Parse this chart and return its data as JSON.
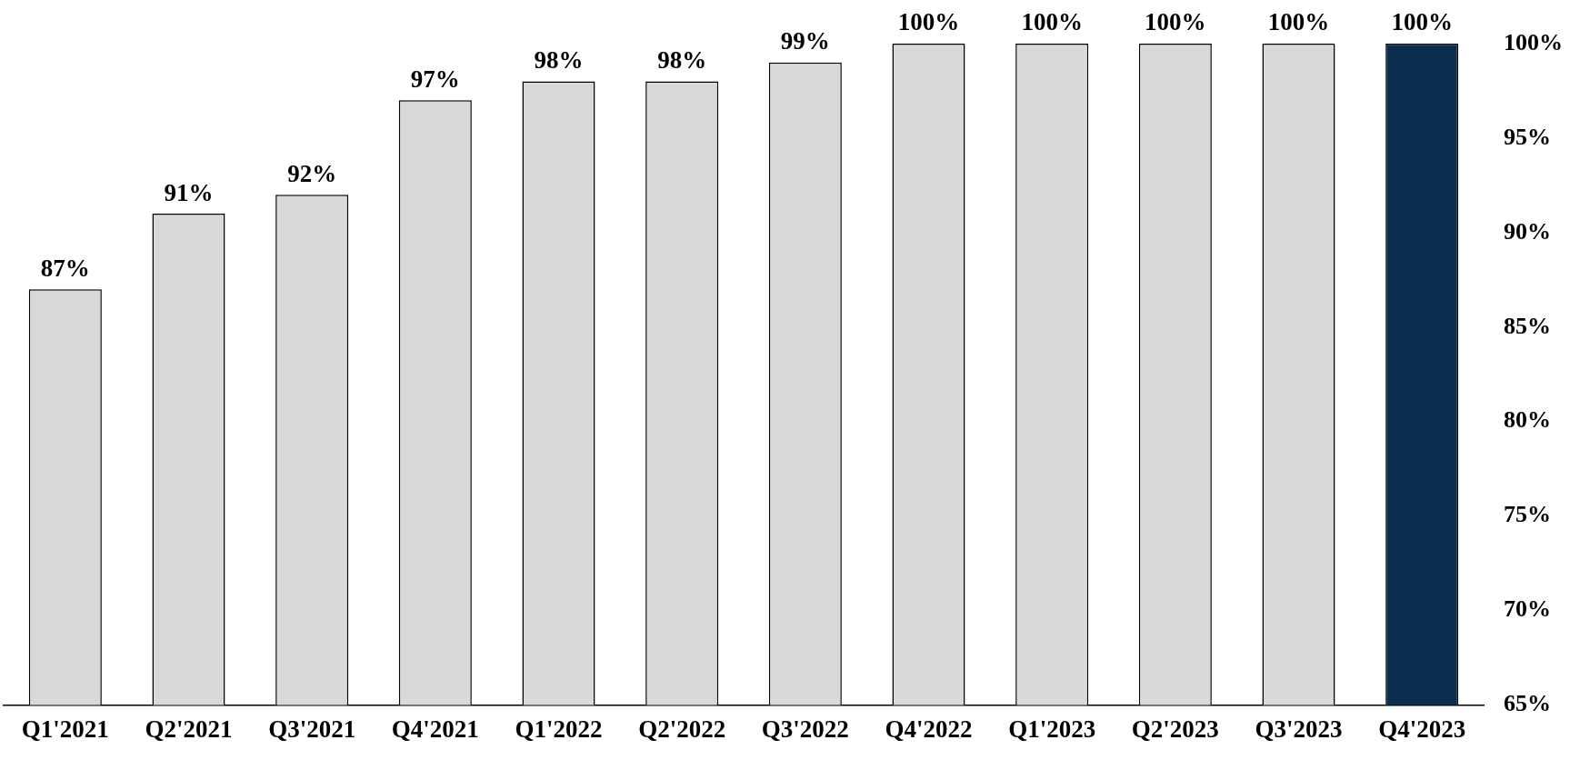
{
  "chart_data": {
    "type": "bar",
    "categories": [
      "Q1'2021",
      "Q2'2021",
      "Q3'2021",
      "Q4'2021",
      "Q1'2022",
      "Q2'2022",
      "Q3'2022",
      "Q4'2022",
      "Q1'2023",
      "Q2'2023",
      "Q3'2023",
      "Q4'2023"
    ],
    "values": [
      87,
      91,
      92,
      97,
      98,
      98,
      99,
      100,
      100,
      100,
      100,
      100
    ],
    "value_labels": [
      "87%",
      "91%",
      "92%",
      "97%",
      "98%",
      "98%",
      "99%",
      "100%",
      "100%",
      "100%",
      "100%",
      "100%"
    ],
    "colors": [
      "#d9d9d9",
      "#d9d9d9",
      "#d9d9d9",
      "#d9d9d9",
      "#d9d9d9",
      "#d9d9d9",
      "#d9d9d9",
      "#d9d9d9",
      "#d9d9d9",
      "#d9d9d9",
      "#d9d9d9",
      "#0b2e4f"
    ],
    "ylim": [
      65,
      100
    ],
    "yticks": [
      {
        "value": 65,
        "label": "65%"
      },
      {
        "value": 70,
        "label": "70%"
      },
      {
        "value": 75,
        "label": "75%"
      },
      {
        "value": 80,
        "label": "80%"
      },
      {
        "value": 85,
        "label": "85%"
      },
      {
        "value": 90,
        "label": "90%"
      },
      {
        "value": 95,
        "label": "95%"
      },
      {
        "value": 100,
        "label": "100%"
      }
    ],
    "grid": false,
    "legend": false
  }
}
